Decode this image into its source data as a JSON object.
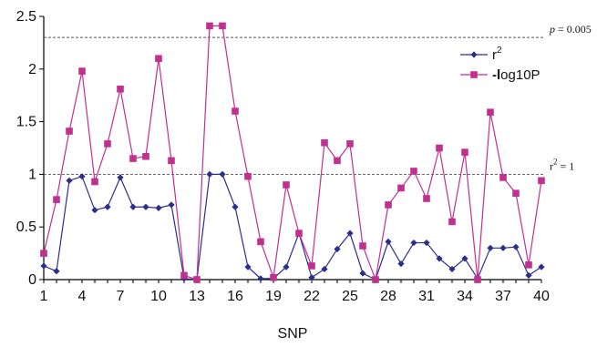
{
  "chart_data": {
    "type": "line",
    "xlabel": "SNP",
    "ylabel": "",
    "ylim": [
      0,
      2.5
    ],
    "y_ticks": [
      "0",
      "0.5",
      "1",
      "1.5",
      "2",
      "2.5"
    ],
    "x_tick_labels": [
      "1",
      "4",
      "7",
      "10",
      "13",
      "16",
      "19",
      "22",
      "25",
      "28",
      "31",
      "34",
      "37",
      "40"
    ],
    "x_tick_positions": [
      1,
      4,
      7,
      10,
      13,
      16,
      19,
      22,
      25,
      28,
      31,
      34,
      37,
      40
    ],
    "x": [
      1,
      2,
      3,
      4,
      5,
      6,
      7,
      8,
      9,
      10,
      11,
      12,
      13,
      14,
      15,
      16,
      17,
      18,
      19,
      20,
      21,
      22,
      23,
      24,
      25,
      26,
      27,
      28,
      29,
      30,
      31,
      32,
      33,
      34,
      35,
      36,
      37,
      38,
      39,
      40
    ],
    "series": [
      {
        "name": "r2",
        "legend_base": "r",
        "legend_sup": "2",
        "color": "#2b2f8c",
        "marker": "diamond",
        "values": [
          0.13,
          0.08,
          0.94,
          0.98,
          0.66,
          0.69,
          0.97,
          0.69,
          0.69,
          0.68,
          0.71,
          0.01,
          0.0,
          1.0,
          1.0,
          0.69,
          0.12,
          0.01,
          0.01,
          0.12,
          0.44,
          0.02,
          0.1,
          0.29,
          0.44,
          0.06,
          0.0,
          0.36,
          0.15,
          0.35,
          0.35,
          0.2,
          0.1,
          0.2,
          0.01,
          0.3,
          0.3,
          0.31,
          0.04,
          0.12
        ]
      },
      {
        "name": "-log10P",
        "legend_bold": "-l",
        "legend_rest": "og10P",
        "color": "#c0308f",
        "marker": "square",
        "values": [
          0.25,
          0.76,
          1.41,
          1.98,
          0.93,
          1.29,
          1.81,
          1.15,
          1.17,
          2.1,
          1.13,
          0.04,
          0.0,
          2.41,
          2.41,
          1.6,
          0.98,
          0.36,
          0.02,
          0.9,
          0.44,
          0.13,
          1.3,
          1.13,
          1.29,
          0.32,
          0.0,
          0.71,
          0.87,
          1.03,
          0.77,
          1.25,
          0.55,
          1.21,
          0.0,
          1.59,
          0.97,
          0.82,
          0.14,
          0.94
        ]
      }
    ],
    "reference_lines": [
      {
        "y": 2.3,
        "label_italic": "p",
        "label_rest": " = 0.005",
        "style": "dashed"
      },
      {
        "y": 1.0,
        "label_base": "r",
        "label_sup": "2",
        "label_rest": " = 1",
        "style": "dashed"
      }
    ],
    "grid": false,
    "legend_position": "top-right"
  }
}
